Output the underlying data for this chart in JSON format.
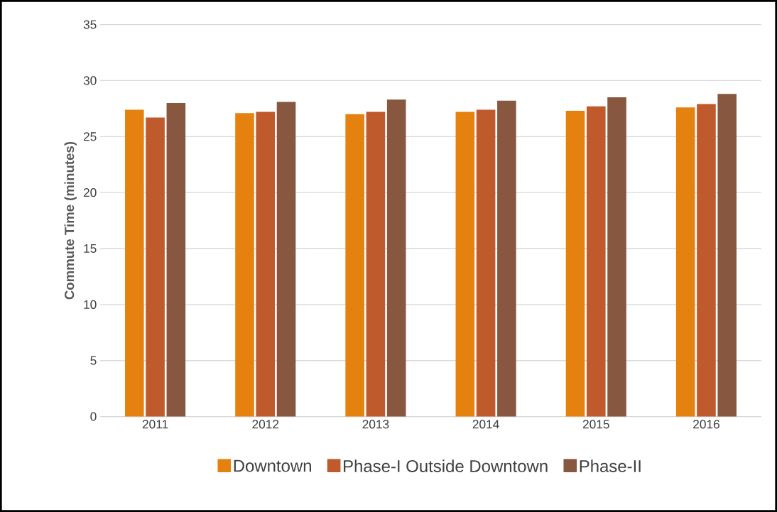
{
  "chart_data": {
    "type": "bar",
    "ylabel": "Commute Time (minutes)",
    "categories": [
      "2011",
      "2012",
      "2013",
      "2014",
      "2015",
      "2016"
    ],
    "series": [
      {
        "name": "Downtown",
        "color": "#e5820f",
        "values": [
          27.4,
          27.1,
          27.0,
          27.2,
          27.3,
          27.6
        ]
      },
      {
        "name": "Phase-I Outside Downtown",
        "color": "#be5a2b",
        "values": [
          26.7,
          27.2,
          27.2,
          27.4,
          27.7,
          27.9
        ]
      },
      {
        "name": "Phase-II",
        "color": "#875740",
        "values": [
          28.0,
          28.1,
          28.3,
          28.2,
          28.5,
          28.8
        ]
      }
    ],
    "ylim": [
      0,
      35
    ],
    "yticks": [
      0,
      5,
      10,
      15,
      20,
      25,
      30,
      35
    ],
    "grid": "y",
    "legend": "bottom"
  }
}
